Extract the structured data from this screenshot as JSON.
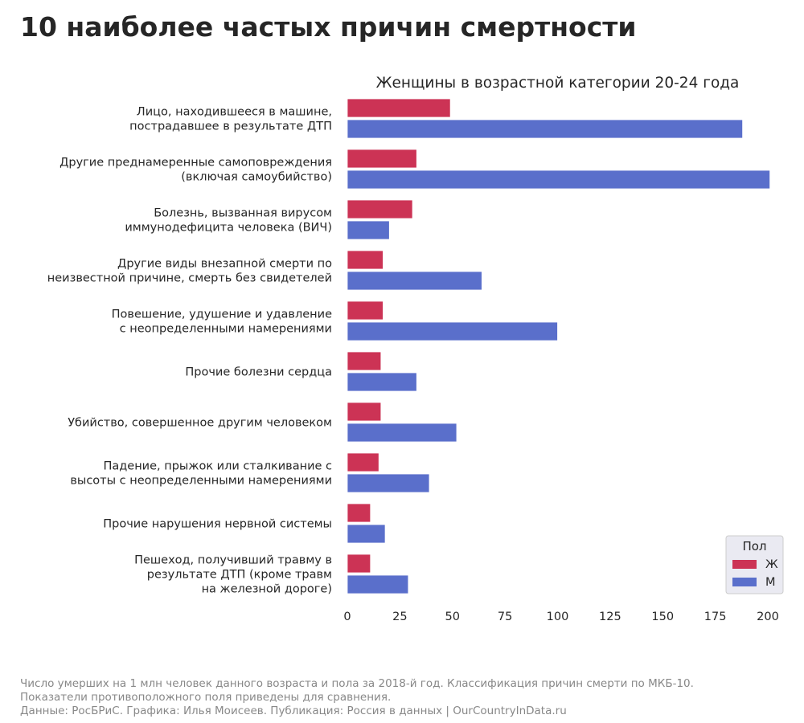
{
  "page_title": "10 наиболее частых причин смертности",
  "chart_data": {
    "type": "bar",
    "orientation": "horizontal",
    "title": "Женщины в возрастной категории 20-24 года",
    "xlabel": "",
    "ylabel": "",
    "xlim": [
      0,
      200
    ],
    "xticks": [
      "0",
      "25",
      "50",
      "75",
      "100",
      "125",
      "150",
      "175",
      "200"
    ],
    "grid": false,
    "legend": {
      "title": "Пол",
      "position": "bottom-right"
    },
    "categories": [
      [
        "Лицо, находившееся в машине,",
        "пострадавшее в результате ДТП"
      ],
      [
        "Другие преднамеренные самоповреждения",
        "(включая самоубийство)"
      ],
      [
        "Болезнь, вызванная вирусом",
        "иммунодефицита человека (ВИЧ)"
      ],
      [
        "Другие виды внезапной смерти по",
        "неизвестной причине, смерть без свидетелей"
      ],
      [
        "Повешение, удушение и удавление",
        "с неопределенными намерениями"
      ],
      [
        "Прочие болезни сердца"
      ],
      [
        "Убийство, совершенное другим человеком"
      ],
      [
        "Падение, прыжок или сталкивание с",
        "высоты с неопределенными намерениями"
      ],
      [
        "Прочие нарушения нервной системы"
      ],
      [
        "Пешеход, получивший травму в",
        "результате ДТП (кроме травм",
        "на железной дороге)"
      ]
    ],
    "series": [
      {
        "name": "Ж",
        "color": "#cc3355",
        "values": [
          49,
          33,
          31,
          17,
          17,
          16,
          16,
          15,
          11,
          11
        ]
      },
      {
        "name": "М",
        "color": "#5a6fcb",
        "values": [
          188,
          201,
          20,
          64,
          100,
          33,
          52,
          39,
          18,
          29
        ]
      }
    ]
  },
  "footer": {
    "line1": "Число умерших на 1 млн человек данного возраста и пола за 2018-й год. Классификация причин смерти по МКБ-10.",
    "line2": "Показатели противоположного поля приведены для сравнения.",
    "line3": "Данные: РосБРиС. Графика: Илья Моисеев. Публикация: Россия в данных | OurCountryInData.ru"
  }
}
